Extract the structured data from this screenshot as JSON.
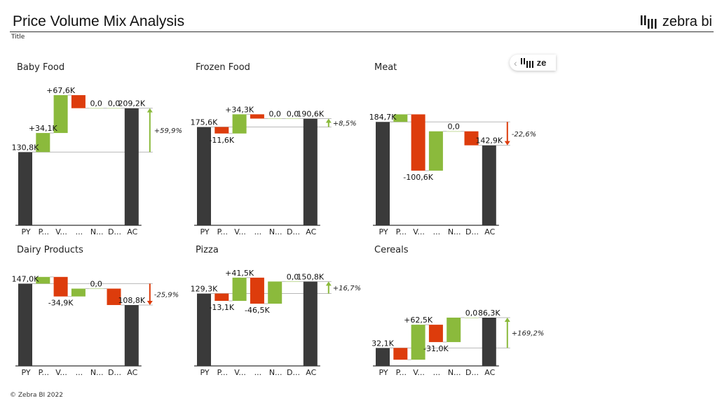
{
  "header": {
    "title": "Price Volume Mix Analysis",
    "subtitle": "Title",
    "logo_text": "zebra bi"
  },
  "popup": {
    "logo_text": "ze",
    "icon": "chevron-left-icon"
  },
  "footer": {
    "copyright": "© Zebra BI 2022"
  },
  "colors": {
    "total": "#3a3a3a",
    "positive": "#8bba3c",
    "negative": "#dd3c0c",
    "connector": "#b8b8b8"
  },
  "chart_data": [
    {
      "type": "waterfall",
      "title": "Baby Food",
      "categories": [
        "PY",
        "P...",
        "V...",
        "...",
        "N...",
        "D...",
        "AC"
      ],
      "values": [
        130.8,
        34.1,
        67.6,
        -23.3,
        0,
        0,
        209.2
      ],
      "labels": [
        "130,8K",
        "+34,1K",
        "+67,6K",
        "",
        "0,0",
        "0,0",
        "209,2K"
      ],
      "variance_label": "+59,9%"
    },
    {
      "type": "waterfall",
      "title": "Frozen Food",
      "categories": [
        "PY",
        "P...",
        "V...",
        "...",
        "N...",
        "D...",
        "AC"
      ],
      "values": [
        175.6,
        -11.6,
        34.3,
        -7.7,
        0,
        0,
        190.6
      ],
      "labels": [
        "175,6K",
        "-11,6K",
        "+34,3K",
        "",
        "0,0",
        "0,0",
        "190,6K"
      ],
      "variance_label": "+8,5%"
    },
    {
      "type": "waterfall",
      "title": "Meat",
      "categories": [
        "PY",
        "P...",
        "V...",
        "...",
        "N...",
        "D...",
        "AC"
      ],
      "values": [
        184.7,
        13.5,
        -100.6,
        70.3,
        0,
        -25.0,
        142.9
      ],
      "labels": [
        "184,7K",
        "",
        "-100,6K",
        "",
        "0,0",
        "",
        "142,9K"
      ],
      "variance_label": "-22,6%"
    },
    {
      "type": "waterfall",
      "title": "Dairy Products",
      "categories": [
        "PY",
        "P...",
        "V...",
        "...",
        "N...",
        "D...",
        "AC"
      ],
      "values": [
        147.0,
        12.0,
        -34.9,
        14.0,
        0,
        -29.3,
        108.8
      ],
      "labels": [
        "147,0K",
        "",
        "-34,9K",
        "",
        "0,0",
        "",
        "108,8K"
      ],
      "variance_label": "-25,9%"
    },
    {
      "type": "waterfall",
      "title": "Pizza",
      "categories": [
        "PY",
        "P...",
        "V...",
        "...",
        "N...",
        "D...",
        "AC"
      ],
      "values": [
        129.3,
        -13.1,
        41.5,
        -46.5,
        39.6,
        0,
        150.8
      ],
      "labels": [
        "129,3K",
        "-13,1K",
        "+41,5K",
        "-46,5K",
        "",
        "0,0",
        "150,8K"
      ],
      "variance_label": "+16,7%"
    },
    {
      "type": "waterfall",
      "title": "Cereals",
      "categories": [
        "PY",
        "P...",
        "V...",
        "...",
        "N...",
        "D...",
        "AC"
      ],
      "values": [
        32.1,
        -21.0,
        62.5,
        -31.0,
        43.7,
        0,
        86.3
      ],
      "labels": [
        "32,1K",
        "",
        "+62,5K",
        "-31,0K",
        "",
        "0,0",
        "86,3K"
      ],
      "variance_label": "+169,2%"
    }
  ]
}
